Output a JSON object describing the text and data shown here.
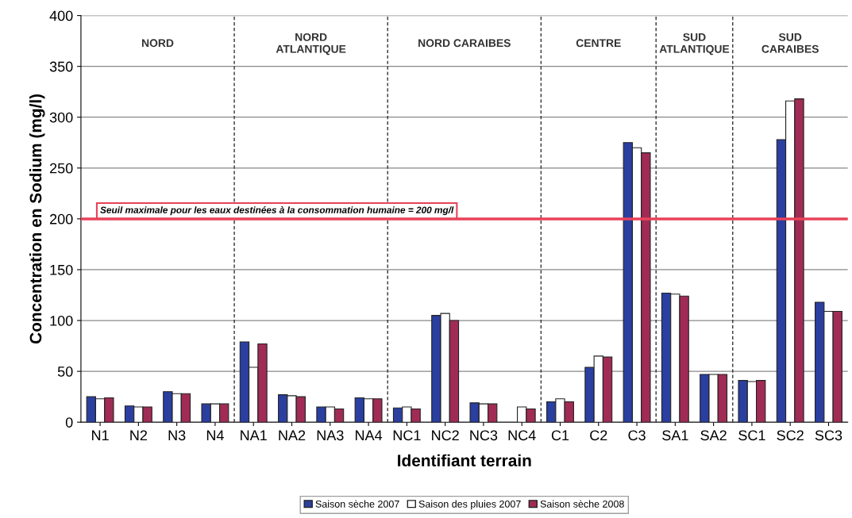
{
  "chart_data": {
    "type": "bar",
    "xlabel": "Identifiant terrain",
    "ylabel": "Concentration en Sodium (mg/l)",
    "categories": [
      "N1",
      "N2",
      "N3",
      "N4",
      "NA1",
      "NA2",
      "NA3",
      "NA4",
      "NC1",
      "NC2",
      "NC3",
      "NC4",
      "C1",
      "C2",
      "C3",
      "SA1",
      "SA2",
      "SC1",
      "SC2",
      "SC3"
    ],
    "series": [
      {
        "name": "Saison sèche 2007",
        "color": "#2a3fa0",
        "values": [
          25,
          16,
          30,
          18,
          79,
          27,
          15,
          24,
          14,
          105,
          19,
          null,
          20,
          54,
          275,
          127,
          47,
          41,
          278,
          118
        ]
      },
      {
        "name": "Saison des pluies 2007",
        "color": "#ffffff",
        "values": [
          23,
          15,
          28,
          18,
          54,
          26,
          15,
          23,
          15,
          107,
          18,
          15,
          23,
          65,
          270,
          126,
          47,
          40,
          316,
          109
        ]
      },
      {
        "name": "Saison sèche 2008",
        "color": "#a02c55",
        "values": [
          24,
          15,
          28,
          18,
          77,
          25,
          13,
          23,
          13,
          100,
          18,
          13,
          20,
          64,
          265,
          124,
          47,
          41,
          318,
          109
        ]
      }
    ],
    "ylim": [
      0,
      400
    ],
    "yticks": [
      0,
      50,
      100,
      150,
      200,
      250,
      300,
      350,
      400
    ],
    "grid": "y",
    "legend": "bottom",
    "ref_lines": [
      {
        "axis": "y",
        "value": 200,
        "label": "Seuil maximale pour les eaux destinées à la consommation humaine = 200 mg/l",
        "color": "#e8425a"
      }
    ],
    "annotations": [
      "NORD",
      "NORD\nATLANTIQUE",
      "NORD CARAIBES",
      "CENTRE",
      "SUD\nATLANTIQUE",
      "SUD\nCARAIBES"
    ]
  }
}
